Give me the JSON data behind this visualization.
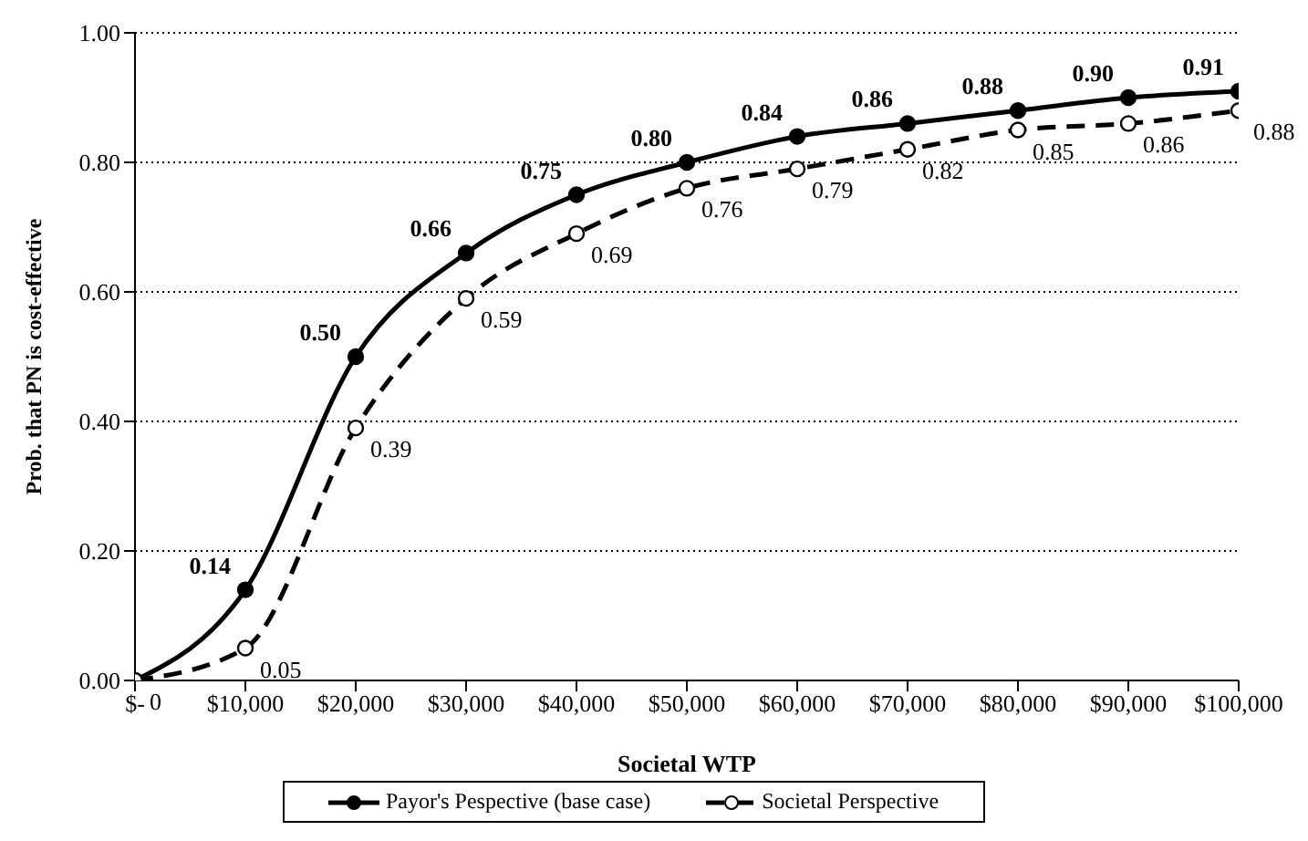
{
  "chart_data": {
    "type": "line",
    "xlabel": "Societal WTP",
    "ylabel": "Prob. that PN is cost-effective",
    "x": [
      0,
      10000,
      20000,
      30000,
      40000,
      50000,
      60000,
      70000,
      80000,
      90000,
      100000
    ],
    "series": [
      {
        "name": "Payor's Pespective (base case)",
        "color": "#000000",
        "line_style": "solid",
        "values": [
          0,
          0.14,
          0.5,
          0.66,
          0.75,
          0.8,
          0.84,
          0.86,
          0.88,
          0.9,
          0.91
        ],
        "value_labels": [
          null,
          "0.14",
          "0.50",
          "0.66",
          "0.75",
          "0.80",
          "0.84",
          "0.86",
          "0.88",
          "0.90",
          "0.91"
        ]
      },
      {
        "name": "Societal Perspective",
        "color": "#000000",
        "line_style": "dashed",
        "values": [
          0,
          0.05,
          0.39,
          0.59,
          0.69,
          0.76,
          0.79,
          0.82,
          0.85,
          0.86,
          0.88
        ],
        "value_labels": [
          "0",
          "0.05",
          "0.39",
          "0.59",
          "0.69",
          "0.76",
          "0.79",
          "0.82",
          "0.85",
          "0.86",
          "0.88"
        ]
      }
    ],
    "xlim": [
      0,
      100000
    ],
    "xticks": [
      {
        "value": 0,
        "label": "$-"
      },
      {
        "value": 10000,
        "label": "$10,000"
      },
      {
        "value": 20000,
        "label": "$20,000"
      },
      {
        "value": 30000,
        "label": "$30,000"
      },
      {
        "value": 40000,
        "label": "$40,000"
      },
      {
        "value": 50000,
        "label": "$50,000"
      },
      {
        "value": 60000,
        "label": "$60,000"
      },
      {
        "value": 70000,
        "label": "$70,000"
      },
      {
        "value": 80000,
        "label": "$80,000"
      },
      {
        "value": 90000,
        "label": "$90,000"
      },
      {
        "value": 100000,
        "label": "$100,000"
      }
    ],
    "ylim": [
      0,
      1
    ],
    "yticks": [
      {
        "value": 0,
        "label": "0.00"
      },
      {
        "value": 0.2,
        "label": "0.20"
      },
      {
        "value": 0.4,
        "label": "0.40"
      },
      {
        "value": 0.6,
        "label": "0.60"
      },
      {
        "value": 0.8,
        "label": "0.80"
      },
      {
        "value": 1,
        "label": "1.00"
      }
    ],
    "grid": "y",
    "legend": "bottom",
    "marker": "circle"
  }
}
